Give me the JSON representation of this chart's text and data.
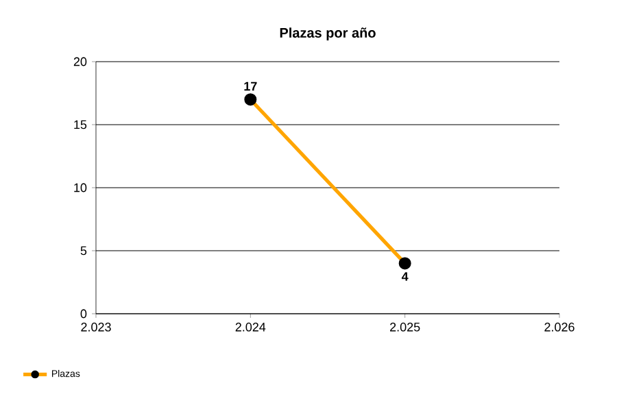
{
  "chart_data": {
    "type": "line",
    "title": "Plazas por año",
    "x": [
      2024,
      2025
    ],
    "series": [
      {
        "name": "Plazas",
        "color": "#ffa500",
        "values": [
          17,
          4
        ]
      }
    ],
    "xlim": [
      2023,
      2026
    ],
    "xticks": [
      {
        "value": 2023,
        "label": "2.023"
      },
      {
        "value": 2024,
        "label": "2.024"
      },
      {
        "value": 2025,
        "label": "2.025"
      },
      {
        "value": 2026,
        "label": "2.026"
      }
    ],
    "ylim": [
      0,
      20
    ],
    "yticks": [
      0,
      5,
      10,
      15,
      20
    ],
    "grid": "y",
    "legend": "bottom left",
    "marker": "circle",
    "line_style": "solid",
    "data_labels": true
  }
}
